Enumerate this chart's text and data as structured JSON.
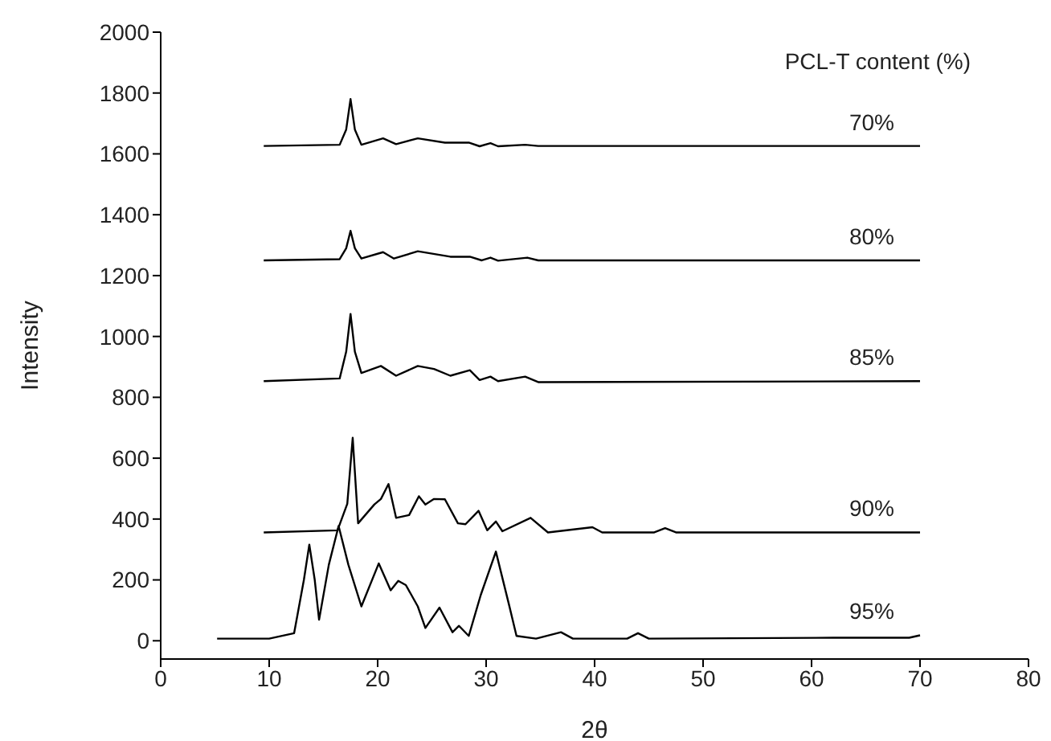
{
  "chart_data": {
    "type": "line",
    "xlabel": "2θ",
    "ylabel": "Intensity",
    "legend_title": "PCL-T content (%)",
    "xlim": [
      0,
      80
    ],
    "xticks": [
      0,
      10,
      20,
      30,
      40,
      50,
      60,
      70,
      80
    ],
    "ylim": [
      -60,
      2000
    ],
    "yticks": [
      0,
      200,
      400,
      600,
      800,
      1000,
      1200,
      1400,
      1600,
      1800,
      2000
    ],
    "marker": "none",
    "line_style": "solid",
    "series": [
      {
        "name": "70%",
        "color": "#000000",
        "x": [
          9.5,
          16.5,
          17.1,
          17.5,
          17.9,
          18.5,
          20.5,
          21.7,
          23.7,
          26.2,
          28.4,
          29.4,
          30.4,
          31.1,
          33.6,
          34.8,
          70
        ],
        "values": [
          1626,
          1630,
          1680,
          1780,
          1680,
          1630,
          1651,
          1632,
          1651,
          1637,
          1637,
          1625,
          1635,
          1625,
          1630,
          1626,
          1626
        ]
      },
      {
        "name": "80%",
        "color": "#000000",
        "x": [
          9.5,
          16.5,
          17.1,
          17.5,
          17.9,
          18.5,
          20.5,
          21.5,
          23.7,
          26.7,
          28.5,
          29.6,
          30.4,
          31.1,
          33.8,
          34.8,
          70
        ],
        "values": [
          1250,
          1254,
          1290,
          1347,
          1290,
          1256,
          1277,
          1256,
          1280,
          1262,
          1262,
          1250,
          1259,
          1249,
          1259,
          1250,
          1250
        ]
      },
      {
        "name": "85%",
        "color": "#000000",
        "x": [
          9.5,
          16.5,
          17.1,
          17.5,
          17.9,
          18.5,
          20.3,
          21.7,
          23.7,
          25.2,
          26.7,
          28.5,
          29.4,
          30.4,
          31.1,
          33.6,
          34.8,
          70
        ],
        "values": [
          853,
          862,
          950,
          1074,
          950,
          880,
          903,
          871,
          903,
          893,
          871,
          889,
          857,
          868,
          853,
          868,
          850,
          853
        ]
      },
      {
        "name": "90%",
        "color": "#000000",
        "x": [
          9.5,
          16.3,
          17.2,
          17.7,
          18.2,
          19.7,
          20.3,
          21,
          21.7,
          22.9,
          23.8,
          24.4,
          25.2,
          26.2,
          27.4,
          28.1,
          29.3,
          30.1,
          30.9,
          31.5,
          34.1,
          35.7,
          39.8,
          40.7,
          45.5,
          46.5,
          47.5,
          70
        ],
        "values": [
          356,
          363,
          450,
          667,
          386,
          448,
          466,
          515,
          404,
          413,
          475,
          448,
          466,
          465,
          386,
          383,
          427,
          363,
          392,
          360,
          404,
          356,
          373,
          356,
          356,
          370,
          356,
          356
        ]
      },
      {
        "name": "95%",
        "color": "#000000",
        "x": [
          5.2,
          10,
          12.3,
          13.2,
          13.7,
          14.2,
          14.6,
          15.5,
          16.4,
          17.3,
          18.5,
          20.1,
          21.2,
          21.9,
          22.6,
          23.7,
          24.4,
          25.7,
          26.9,
          27.5,
          28.4,
          29.5,
          30.9,
          32.1,
          32.8,
          34.6,
          36.9,
          38,
          43,
          44,
          45,
          62,
          69,
          70
        ],
        "values": [
          7,
          7,
          25,
          200,
          316,
          200,
          69,
          250,
          377,
          250,
          113,
          254,
          166,
          197,
          183,
          113,
          42,
          109,
          28,
          49,
          16,
          150,
          293,
          120,
          16,
          7,
          28,
          7,
          7,
          25,
          7,
          10,
          10,
          18
        ]
      }
    ]
  }
}
